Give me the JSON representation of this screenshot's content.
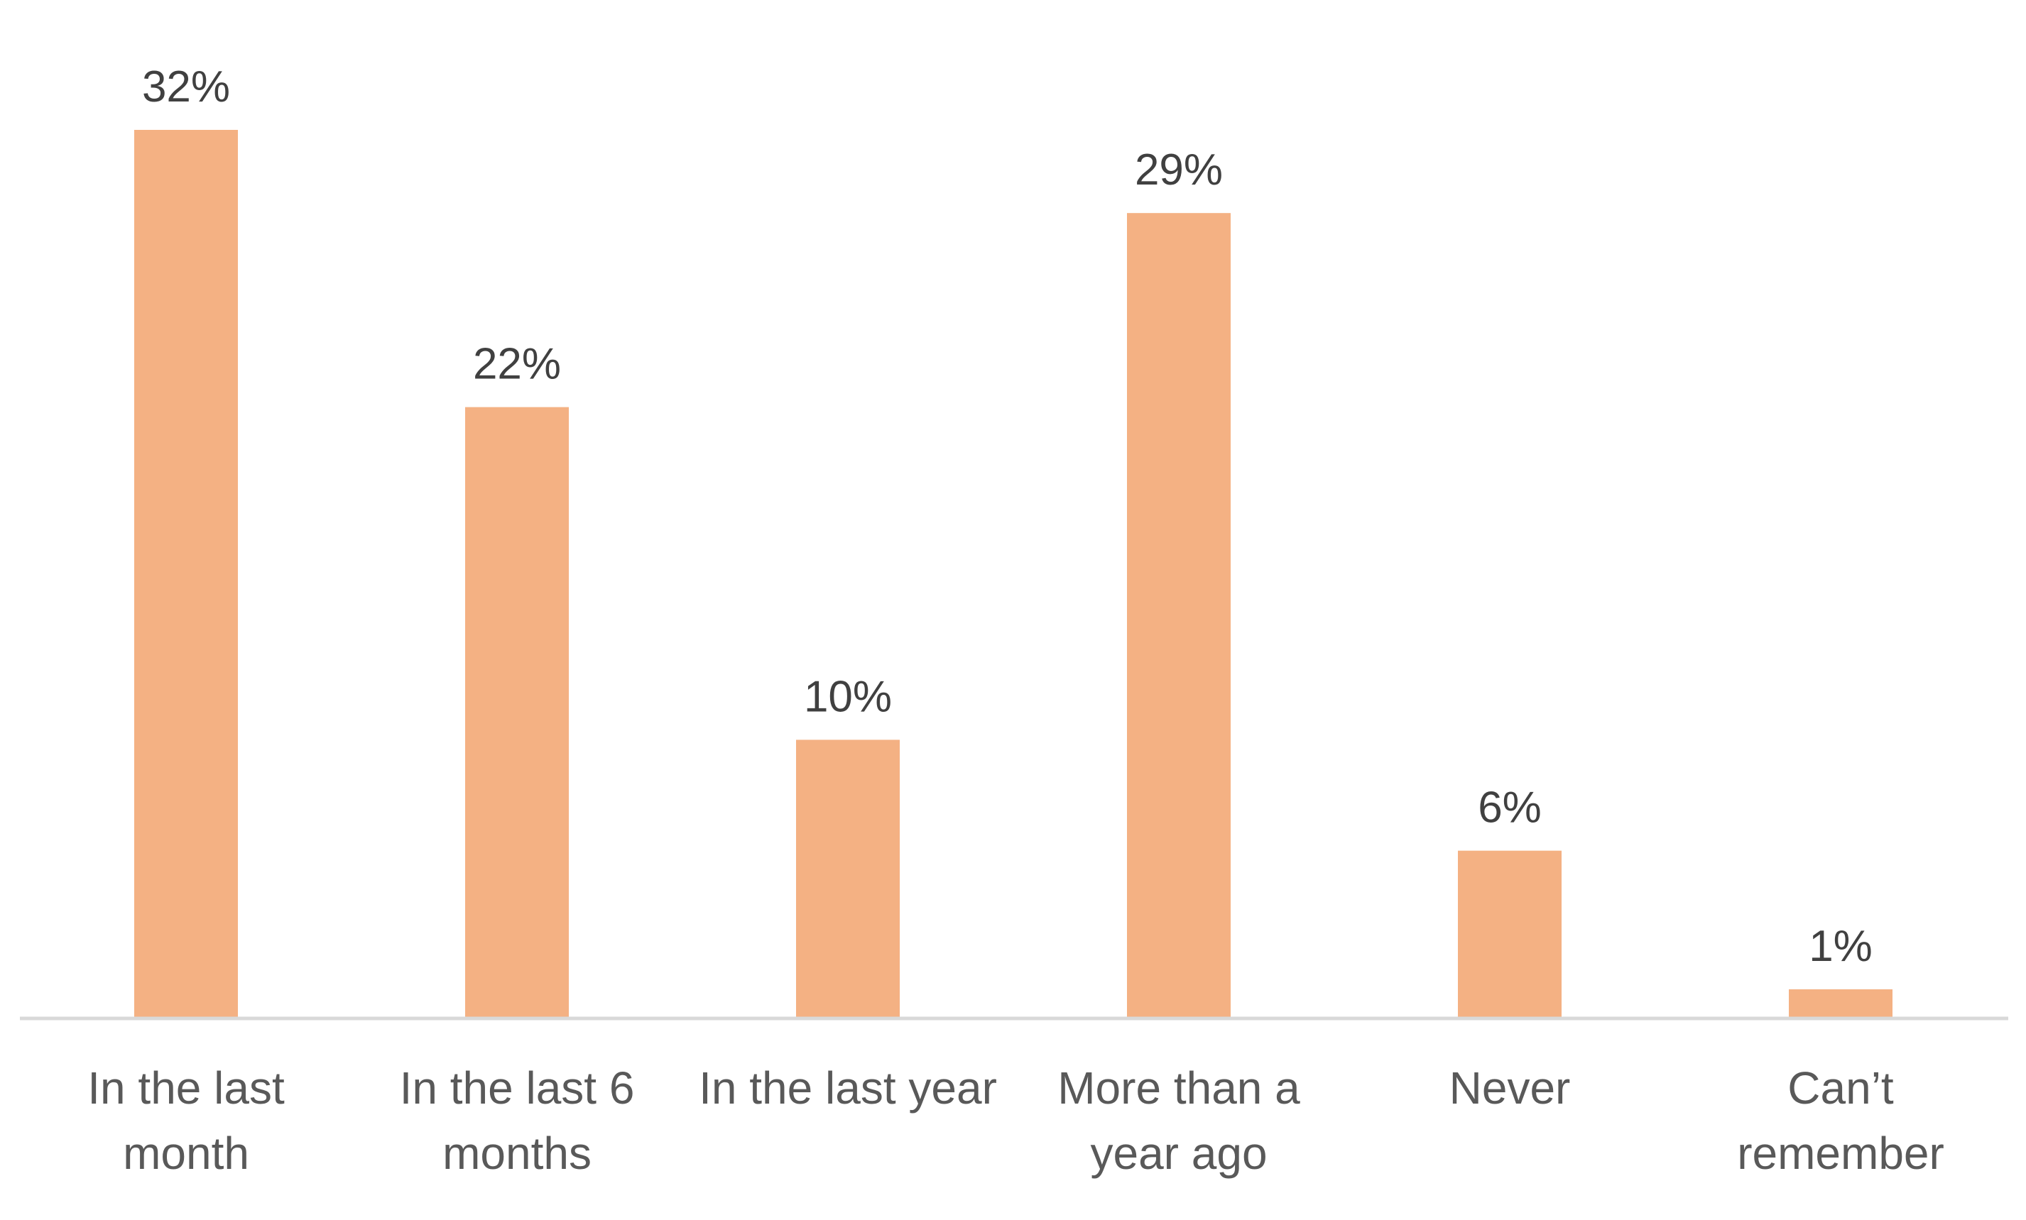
{
  "chart_data": {
    "type": "bar",
    "categories": [
      [
        "In the last",
        "month"
      ],
      [
        "In the last 6",
        "months"
      ],
      [
        "In the last year"
      ],
      [
        "More than a",
        "year ago"
      ],
      [
        "Never"
      ],
      [
        "Can’t",
        "remember"
      ]
    ],
    "values": [
      32,
      22,
      10,
      29,
      6,
      1
    ],
    "value_labels": [
      "32%",
      "22%",
      "10%",
      "29%",
      "6%",
      "1%"
    ],
    "unit": "%",
    "ylim": [
      0,
      32
    ],
    "grid": false,
    "legend": "none",
    "colors": {
      "bar": "#F4B183",
      "axis": "#D9D9D9",
      "label": "#404040",
      "category": "#595959"
    }
  }
}
